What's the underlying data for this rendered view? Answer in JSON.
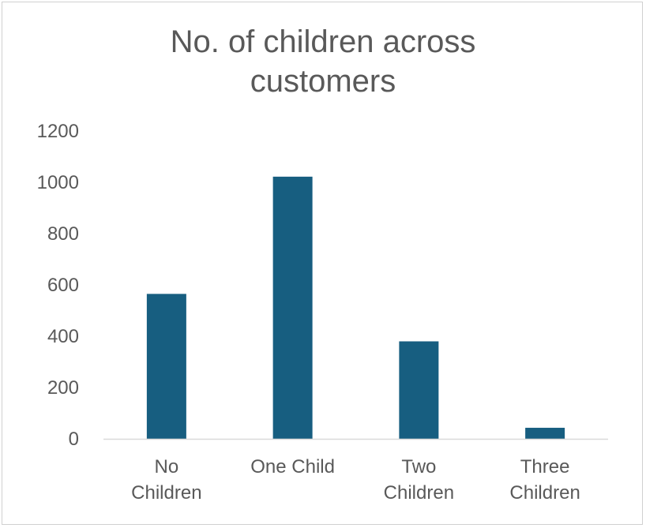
{
  "chart_data": {
    "type": "bar",
    "title_lines": [
      "No. of children across",
      "customers"
    ],
    "categories": [
      [
        "No",
        "Children"
      ],
      [
        "One Child"
      ],
      [
        "Two",
        "Children"
      ],
      [
        "Three",
        "Children"
      ]
    ],
    "values": [
      565,
      1022,
      380,
      43
    ],
    "ylim": [
      0,
      1200
    ],
    "yticks": [
      0,
      200,
      400,
      600,
      800,
      1000,
      1200
    ],
    "bar_color": "#175E80",
    "axis_color": "#d9d9d9",
    "grid": false,
    "legend": "none"
  }
}
